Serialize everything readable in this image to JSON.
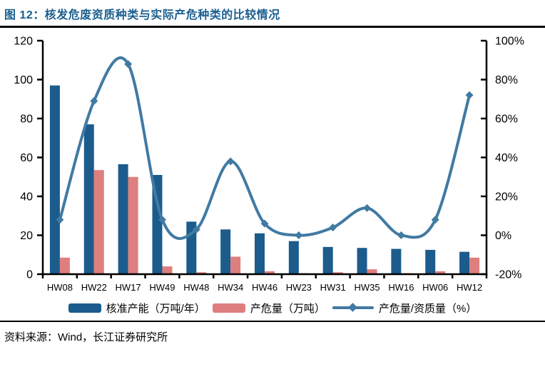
{
  "title": "图 12：核发危废资质种类与实际产危种类的比较情况",
  "source": "资料来源：Wind，长江证券研究所",
  "colors": {
    "title_blue": "#1a5e8f",
    "bar_blue": "#1b5c8c",
    "bar_pink": "#df7e7e",
    "line_blue": "#417aa3",
    "axis_black": "#000000"
  },
  "chart_data": {
    "type": "bar",
    "subtype": "bar+line combo, dual axis",
    "title": "核发危废资质种类与实际产危种类的比较情况",
    "categories": [
      "HW08",
      "HW22",
      "HW17",
      "HW49",
      "HW48",
      "HW34",
      "HW46",
      "HW23",
      "HW31",
      "HW35",
      "HW16",
      "HW06",
      "HW12"
    ],
    "series": [
      {
        "name": "核准产能（万吨/年）",
        "type": "bar",
        "axis": "left",
        "color": "#1b5c8c",
        "values": [
          97,
          77,
          56.5,
          51,
          27,
          23,
          21,
          17,
          14,
          13.5,
          13,
          12.5,
          11.5
        ]
      },
      {
        "name": "产危量（万吨）",
        "type": "bar",
        "axis": "left",
        "color": "#df7e7e",
        "values": [
          8.5,
          53.5,
          50,
          4,
          1,
          9,
          1.5,
          0.5,
          1,
          2.5,
          0.5,
          1.5,
          8.5
        ]
      },
      {
        "name": "产危量/资质量（%）",
        "type": "line",
        "axis": "right",
        "color": "#417aa3",
        "marker": "diamond",
        "values": [
          8,
          69,
          88,
          8,
          3,
          38,
          6,
          0,
          4,
          14,
          0,
          8,
          72
        ]
      }
    ],
    "left_axis": {
      "min": 0,
      "max": 120,
      "step": 20,
      "ticks": [
        "0",
        "20",
        "40",
        "60",
        "80",
        "100",
        "120"
      ]
    },
    "right_axis": {
      "min": -20,
      "max": 100,
      "step": 20,
      "ticks": [
        "-20%",
        "0%",
        "20%",
        "40%",
        "60%",
        "80%",
        "100%"
      ]
    },
    "grid": false,
    "legend_position": "bottom",
    "xlabel": "",
    "ylabel_left": "",
    "ylabel_right": ""
  }
}
